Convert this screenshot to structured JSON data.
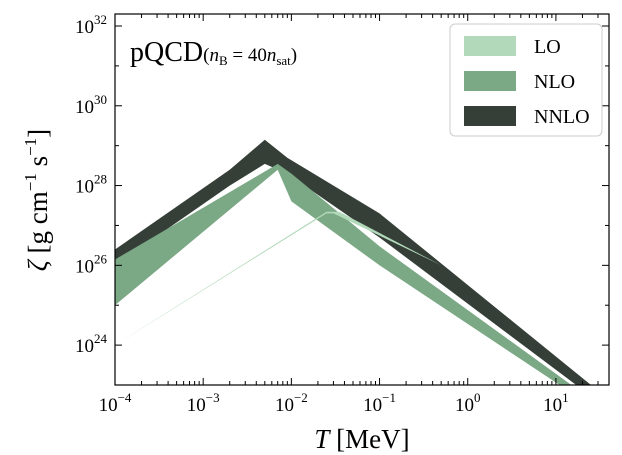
{
  "chart_data": {
    "type": "area",
    "annotation": {
      "main": "pQCD",
      "open": "(",
      "n1": "n",
      "n1_sub": "B",
      "eq": " = 40",
      "n2": "n",
      "n2_sub": "sat",
      "close": ")"
    },
    "xlabel": {
      "var": "T",
      "unit": " [MeV]"
    },
    "ylabel": {
      "var": "ζ",
      "unit_open": " [g cm",
      "exp1": "−1",
      "mid": " s",
      "exp2": "−1",
      "close": "]"
    },
    "x_scale": "log",
    "y_scale": "log",
    "xlim": [
      0.0001,
      40
    ],
    "ylim": [
      1e+23,
      2e+32
    ],
    "x_ticks": [
      {
        "value": 0.0001,
        "base": "10",
        "exp": "−4"
      },
      {
        "value": 0.001,
        "base": "10",
        "exp": "−3"
      },
      {
        "value": 0.01,
        "base": "10",
        "exp": "−2"
      },
      {
        "value": 0.1,
        "base": "10",
        "exp": "−1"
      },
      {
        "value": 1,
        "base": "10",
        "exp": "0"
      },
      {
        "value": 10,
        "base": "10",
        "exp": "1"
      }
    ],
    "y_ticks": [
      {
        "value": 1e+24,
        "base": "10",
        "exp": "24"
      },
      {
        "value": 1e+26,
        "base": "10",
        "exp": "26"
      },
      {
        "value": 1e+28,
        "base": "10",
        "exp": "28"
      },
      {
        "value": 1e+30,
        "base": "10",
        "exp": "30"
      },
      {
        "value": 1e+32,
        "base": "10",
        "exp": "32"
      }
    ],
    "legend_position": "top-right",
    "grid": false,
    "series": [
      {
        "name": "LO",
        "color": "#b2d9b9",
        "upper": [
          [
            0.0001,
            1e+24
          ],
          [
            0.025,
            2.2e+27
          ],
          [
            0.035,
            2.2e+27
          ],
          [
            0.5,
            1e+26
          ],
          [
            14,
            1e+23
          ]
        ],
        "lower": [
          [
            14,
            1e+23
          ],
          [
            0.5,
            1e+26
          ],
          [
            0.03,
            2e+27
          ],
          [
            0.025,
            2e+27
          ],
          [
            0.0001,
            1e+24
          ]
        ]
      },
      {
        "name": "NLO",
        "color": "#7ba885",
        "upper": [
          [
            0.0001,
            1.4e+26
          ],
          [
            0.007,
            3.5e+28
          ],
          [
            0.01,
            2e+28
          ],
          [
            0.1,
            3e+26
          ],
          [
            15,
            1e+23
          ]
        ],
        "lower": [
          [
            11,
            1e+23
          ],
          [
            0.1,
            1e+26
          ],
          [
            0.01,
            4e+27
          ],
          [
            0.007,
            2.5e+28
          ],
          [
            0.0001,
            1e+25
          ]
        ]
      },
      {
        "name": "NNLO",
        "color": "#353f38",
        "upper": [
          [
            0.0001,
            2.5e+26
          ],
          [
            0.002,
            2.5e+28
          ],
          [
            0.005,
            1.4e+29
          ],
          [
            0.009,
            5e+28
          ],
          [
            0.1,
            2e+27
          ],
          [
            25,
            1e+23
          ]
        ],
        "lower": [
          [
            17,
            1e+23
          ],
          [
            0.1,
            5e+26
          ],
          [
            0.009,
            2e+28
          ],
          [
            0.005,
            3.5e+28
          ],
          [
            0.002,
            1e+28
          ],
          [
            0.0001,
            1e+26
          ]
        ]
      }
    ]
  }
}
